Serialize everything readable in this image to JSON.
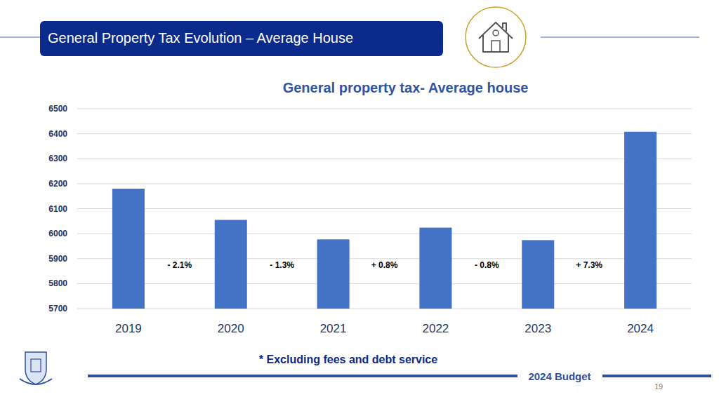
{
  "header": {
    "title": "General Property Tax Evolution – Average House"
  },
  "chart_data": {
    "type": "bar",
    "title": "General property tax- Average house",
    "categories": [
      "2019",
      "2020",
      "2021",
      "2022",
      "2023",
      "2024"
    ],
    "values": [
      6180,
      6055,
      5977,
      6024,
      5974,
      6408
    ],
    "color": "#4472c4",
    "ylim": [
      5700,
      6500
    ],
    "yticks": [
      5700,
      5800,
      5900,
      6000,
      6100,
      6200,
      6300,
      6400,
      6500
    ],
    "grid": true,
    "annotations": [
      "- 2.1%",
      "- 1.3%",
      "+ 0.8%",
      "- 0.8%",
      "+ 7.3%"
    ]
  },
  "footnote": "* Excluding fees and debt service",
  "footer": {
    "label": "2024 Budget",
    "page": 19
  }
}
